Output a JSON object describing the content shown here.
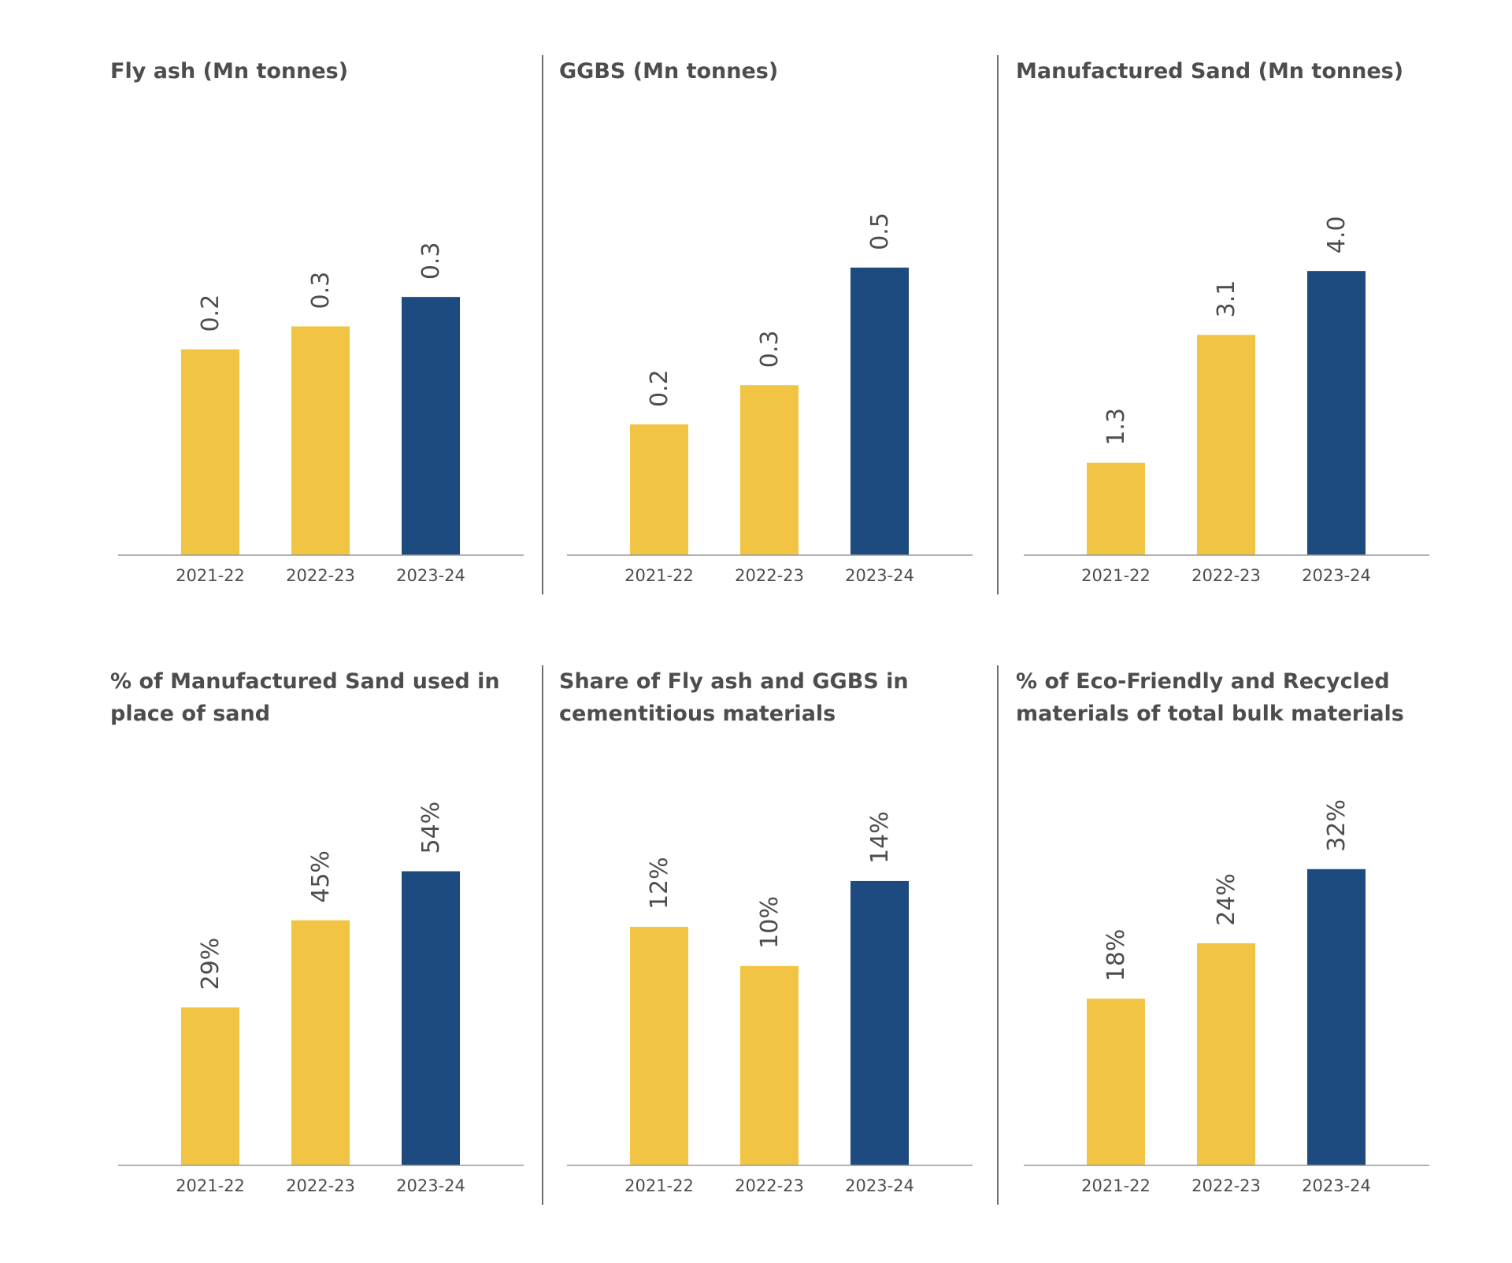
{
  "colors": {
    "prior": "#F2C443",
    "current": "#1D4B80",
    "text": "#4d4d4d",
    "axis": "#9a9a9a",
    "divider": "#6e6e6e"
  },
  "chart_data": [
    {
      "type": "bar",
      "title": "Fly ash (Mn tonnes)",
      "categories": [
        "2021-22",
        "2022-23",
        "2023-24"
      ],
      "values": [
        0.2,
        0.3,
        0.3
      ],
      "value_labels": [
        "0.2",
        "0.3",
        "0.3"
      ],
      "relative_heights": [
        0.63,
        0.7,
        0.79
      ],
      "highlight_index": 2,
      "xlabel": "",
      "ylabel": "",
      "grid": false
    },
    {
      "type": "bar",
      "title": "GGBS (Mn tonnes)",
      "categories": [
        "2021-22",
        "2022-23",
        "2023-24"
      ],
      "values": [
        0.2,
        0.3,
        0.5
      ],
      "value_labels": [
        "0.2",
        "0.3",
        "0.5"
      ],
      "relative_heights": [
        0.4,
        0.52,
        0.88
      ],
      "highlight_index": 2,
      "xlabel": "",
      "ylabel": "",
      "grid": false
    },
    {
      "type": "bar",
      "title": "Manufactured Sand (Mn tonnes)",
      "categories": [
        "2021-22",
        "2022-23",
        "2023-24"
      ],
      "values": [
        1.3,
        3.1,
        4.0
      ],
      "value_labels": [
        "1.3",
        "3.1",
        "4.0"
      ],
      "ylim": [
        0,
        4.6
      ],
      "highlight_index": 2,
      "xlabel": "",
      "ylabel": "",
      "grid": false
    },
    {
      "type": "bar",
      "title": "% of Manufactured Sand used in place of sand",
      "categories": [
        "2021-22",
        "2022-23",
        "2023-24"
      ],
      "values": [
        29,
        45,
        54
      ],
      "value_labels": [
        "29%",
        "45%",
        "54%"
      ],
      "ylim": [
        0,
        60
      ],
      "highlight_index": 2,
      "xlabel": "",
      "ylabel": "",
      "grid": false
    },
    {
      "type": "bar",
      "title": "Share of Fly ash and GGBS in cementitious materials",
      "categories": [
        "2021-22",
        "2022-23",
        "2023-24"
      ],
      "values": [
        12,
        10,
        14
      ],
      "value_labels": [
        "12%",
        "10%",
        "14%"
      ],
      "relative_heights": [
        0.73,
        0.61,
        0.87
      ],
      "highlight_index": 2,
      "xlabel": "",
      "ylabel": "",
      "grid": false
    },
    {
      "type": "bar",
      "title": "% of Eco-Friendly and Recycled materials of total bulk materials",
      "categories": [
        "2021-22",
        "2022-23",
        "2023-24"
      ],
      "values": [
        18,
        24,
        32
      ],
      "value_labels": [
        "18%",
        "24%",
        "32%"
      ],
      "ylim": [
        0,
        35.3
      ],
      "highlight_index": 2,
      "xlabel": "",
      "ylabel": "",
      "grid": false
    }
  ]
}
